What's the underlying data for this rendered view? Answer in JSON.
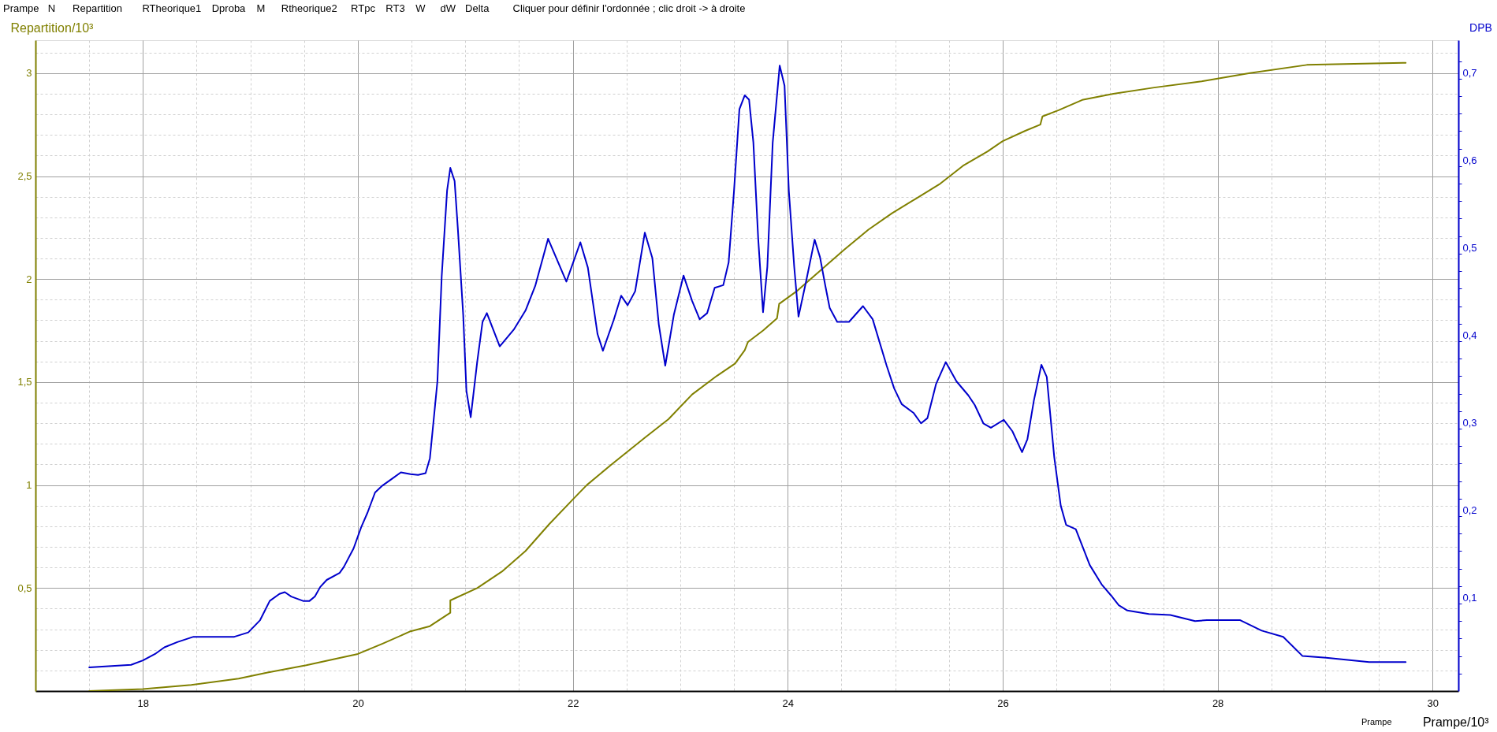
{
  "chart_data": {
    "type": "line",
    "xlabel": "Prampe/10³",
    "ylabel": "Repartition/10³",
    "y2label": "DPB",
    "annotations": [
      "Prampe",
      "N",
      "Repartition",
      "RTheorique1",
      "Dproba",
      "M",
      "Rtheorique2",
      "RTpc",
      "RT3",
      "W",
      "dW",
      "Delta",
      "Cliquer pour définir l'ordonnée ; clic droit -> à droite",
      "Prampe"
    ],
    "xlim": [
      17,
      30.24
    ],
    "xticks": [
      {
        "value": 17.5,
        "label": null
      },
      18,
      {
        "value": 18.5,
        "label": null
      },
      {
        "value": 19,
        "label": null
      },
      {
        "value": 19.5,
        "label": null
      },
      20,
      {
        "value": 20.5,
        "label": null
      },
      {
        "value": 21,
        "label": null
      },
      {
        "value": 21.5,
        "label": null
      },
      22,
      {
        "value": 22.5,
        "label": null
      },
      {
        "value": 23,
        "label": null
      },
      {
        "value": 23.5,
        "label": null
      },
      24,
      {
        "value": 24.5,
        "label": null
      },
      {
        "value": 25,
        "label": null
      },
      {
        "value": 25.5,
        "label": null
      },
      26,
      {
        "value": 26.5,
        "label": null
      },
      {
        "value": 27,
        "label": null
      },
      {
        "value": 27.5,
        "label": null
      },
      28,
      {
        "value": 28.5,
        "label": null
      },
      {
        "value": 29,
        "label": null
      },
      {
        "value": 29.5,
        "label": null
      },
      30
    ],
    "ylim": [
      0,
      3.16
    ],
    "yticks": [
      {
        "value": 0.1,
        "label": null
      },
      {
        "value": 0.2,
        "label": null
      },
      {
        "value": 0.3,
        "label": null
      },
      {
        "value": 0.4,
        "label": null
      },
      {
        "value": 0.5,
        "label": "0,5"
      },
      {
        "value": 0.6,
        "label": null
      },
      {
        "value": 0.7,
        "label": null
      },
      {
        "value": 0.8,
        "label": null
      },
      {
        "value": 0.9,
        "label": null
      },
      1,
      {
        "value": 1.1,
        "label": null
      },
      {
        "value": 1.2,
        "label": null
      },
      {
        "value": 1.3,
        "label": null
      },
      {
        "value": 1.4,
        "label": null
      },
      {
        "value": 1.5,
        "label": "1,5"
      },
      {
        "value": 1.6,
        "label": null
      },
      {
        "value": 1.7,
        "label": null
      },
      {
        "value": 1.8,
        "label": null
      },
      {
        "value": 1.9,
        "label": null
      },
      2,
      {
        "value": 2.1,
        "label": null
      },
      {
        "value": 2.2,
        "label": null
      },
      {
        "value": 2.3,
        "label": null
      },
      {
        "value": 2.4,
        "label": null
      },
      {
        "value": 2.5,
        "label": "2,5"
      },
      {
        "value": 2.6,
        "label": null
      },
      {
        "value": 2.7,
        "label": null
      },
      {
        "value": 2.8,
        "label": null
      },
      {
        "value": 2.9,
        "label": null
      },
      3,
      {
        "value": 3.1,
        "label": null
      }
    ],
    "y2lim": [
      0,
      0.744
    ],
    "y2ticks": [
      {
        "value": 0.02,
        "label": null
      },
      {
        "value": 0.04,
        "label": null
      },
      {
        "value": 0.06,
        "label": null
      },
      {
        "value": 0.08,
        "label": null
      },
      {
        "value": 0.1,
        "label": "0,1"
      },
      {
        "value": 0.12,
        "label": null
      },
      {
        "value": 0.14,
        "label": null
      },
      {
        "value": 0.16,
        "label": null
      },
      {
        "value": 0.18,
        "label": null
      },
      {
        "value": 0.2,
        "label": "0,2"
      },
      {
        "value": 0.22,
        "label": null
      },
      {
        "value": 0.24,
        "label": null
      },
      {
        "value": 0.26,
        "label": null
      },
      {
        "value": 0.28,
        "label": null
      },
      {
        "value": 0.3,
        "label": "0,3"
      },
      {
        "value": 0.32,
        "label": null
      },
      {
        "value": 0.34,
        "label": null
      },
      {
        "value": 0.36,
        "label": null
      },
      {
        "value": 0.38,
        "label": null
      },
      {
        "value": 0.4,
        "label": "0,4"
      },
      {
        "value": 0.42,
        "label": null
      },
      {
        "value": 0.44,
        "label": null
      },
      {
        "value": 0.46,
        "label": null
      },
      {
        "value": 0.48,
        "label": null
      },
      {
        "value": 0.5,
        "label": "0,5"
      },
      {
        "value": 0.52,
        "label": null
      },
      {
        "value": 0.54,
        "label": null
      },
      {
        "value": 0.56,
        "label": null
      },
      {
        "value": 0.58,
        "label": null
      },
      {
        "value": 0.6,
        "label": "0,6"
      },
      {
        "value": 0.62,
        "label": null
      },
      {
        "value": 0.64,
        "label": null
      },
      {
        "value": 0.66,
        "label": null
      },
      {
        "value": 0.68,
        "label": null
      },
      {
        "value": 0.7,
        "label": "0,7"
      },
      {
        "value": 0.72,
        "label": null
      }
    ],
    "grid": true,
    "series": [
      {
        "color": "#808000",
        "x": [
          17.5,
          18.0,
          18.45,
          18.89,
          19.16,
          19.52,
          19.78,
          20.0,
          20.23,
          20.49,
          20.67,
          20.86,
          20.86,
          21.11,
          21.34,
          21.56,
          21.78,
          22.0,
          22.13,
          22.36,
          22.67,
          22.89,
          23.11,
          23.34,
          23.51,
          23.6,
          23.63,
          23.77,
          23.9,
          23.92,
          24.08,
          24.3,
          24.52,
          24.75,
          24.97,
          25.19,
          25.41,
          25.63,
          25.86,
          26.0,
          26.21,
          26.35,
          26.37,
          26.52,
          26.74,
          27.03,
          27.41,
          27.85,
          28.3,
          28.83,
          29.27,
          29.75
        ],
        "values": [
          0,
          0.01,
          0.03,
          0.06,
          0.09,
          0.125,
          0.155,
          0.18,
          0.23,
          0.29,
          0.315,
          0.38,
          0.44,
          0.5,
          0.58,
          0.68,
          0.81,
          0.93,
          1.0,
          1.1,
          1.23,
          1.32,
          1.44,
          1.53,
          1.59,
          1.655,
          1.695,
          1.75,
          1.81,
          1.88,
          1.94,
          2.04,
          2.14,
          2.24,
          2.32,
          2.39,
          2.46,
          2.55,
          2.62,
          2.67,
          2.72,
          2.75,
          2.79,
          2.82,
          2.87,
          2.9,
          2.93,
          2.96,
          3.0,
          3.04,
          3.045,
          3.05
        ]
      },
      {
        "color": "#0000cc",
        "axis": "y2",
        "x": [
          17.5,
          17.89,
          18.0,
          18.12,
          18.2,
          18.32,
          18.47,
          18.85,
          18.98,
          19.09,
          19.18,
          19.27,
          19.32,
          19.38,
          19.49,
          19.55,
          19.6,
          19.65,
          19.71,
          19.83,
          19.87,
          19.96,
          20.03,
          20.09,
          20.16,
          20.23,
          20.31,
          20.4,
          20.49,
          20.56,
          20.63,
          20.67,
          20.71,
          20.74,
          20.78,
          20.83,
          20.86,
          20.9,
          20.93,
          20.98,
          21.01,
          21.05,
          21.11,
          21.16,
          21.2,
          21.32,
          21.45,
          21.56,
          21.65,
          21.77,
          21.94,
          22.07,
          22.14,
          22.23,
          22.28,
          22.38,
          22.45,
          22.51,
          22.58,
          22.67,
          22.74,
          22.8,
          22.86,
          22.94,
          23.03,
          23.11,
          23.18,
          23.25,
          23.32,
          23.4,
          23.45,
          23.5,
          23.55,
          23.6,
          23.64,
          23.68,
          23.725,
          23.77,
          23.81,
          23.86,
          23.925,
          23.97,
          24.01,
          24.06,
          24.1,
          24.17,
          24.25,
          24.3,
          24.35,
          24.39,
          24.46,
          24.57,
          24.7,
          24.79,
          24.92,
          24.99,
          25.06,
          25.17,
          25.24,
          25.3,
          25.38,
          25.47,
          25.57,
          25.68,
          25.74,
          25.82,
          25.89,
          26.01,
          26.09,
          26.18,
          26.23,
          26.29,
          26.36,
          26.41,
          26.48,
          26.54,
          26.59,
          26.68,
          26.74,
          26.81,
          26.92,
          27.01,
          27.08,
          27.16,
          27.36,
          27.56,
          27.79,
          27.9,
          28.21,
          28.41,
          28.61,
          28.79,
          29.01,
          29.41,
          29.75
        ],
        "values": [
          0.027,
          0.03,
          0.035,
          0.043,
          0.05,
          0.056,
          0.062,
          0.062,
          0.067,
          0.081,
          0.103,
          0.111,
          0.113,
          0.108,
          0.103,
          0.103,
          0.108,
          0.119,
          0.127,
          0.135,
          0.142,
          0.163,
          0.187,
          0.204,
          0.227,
          0.235,
          0.242,
          0.25,
          0.248,
          0.247,
          0.249,
          0.266,
          0.316,
          0.354,
          0.474,
          0.572,
          0.598,
          0.583,
          0.529,
          0.43,
          0.343,
          0.313,
          0.376,
          0.422,
          0.432,
          0.394,
          0.413,
          0.435,
          0.463,
          0.517,
          0.468,
          0.513,
          0.484,
          0.408,
          0.389,
          0.424,
          0.452,
          0.441,
          0.457,
          0.524,
          0.495,
          0.419,
          0.372,
          0.43,
          0.475,
          0.446,
          0.425,
          0.432,
          0.461,
          0.464,
          0.49,
          0.572,
          0.665,
          0.681,
          0.676,
          0.627,
          0.517,
          0.433,
          0.485,
          0.627,
          0.715,
          0.692,
          0.572,
          0.485,
          0.428,
          0.468,
          0.516,
          0.496,
          0.463,
          0.438,
          0.422,
          0.422,
          0.44,
          0.425,
          0.372,
          0.346,
          0.328,
          0.318,
          0.306,
          0.312,
          0.351,
          0.376,
          0.354,
          0.338,
          0.327,
          0.306,
          0.301,
          0.31,
          0.297,
          0.273,
          0.288,
          0.332,
          0.373,
          0.359,
          0.267,
          0.212,
          0.19,
          0.185,
          0.166,
          0.144,
          0.122,
          0.109,
          0.098,
          0.092,
          0.088,
          0.087,
          0.08,
          0.081,
          0.081,
          0.069,
          0.062,
          0.04,
          0.038,
          0.033,
          0.033
        ]
      }
    ]
  }
}
